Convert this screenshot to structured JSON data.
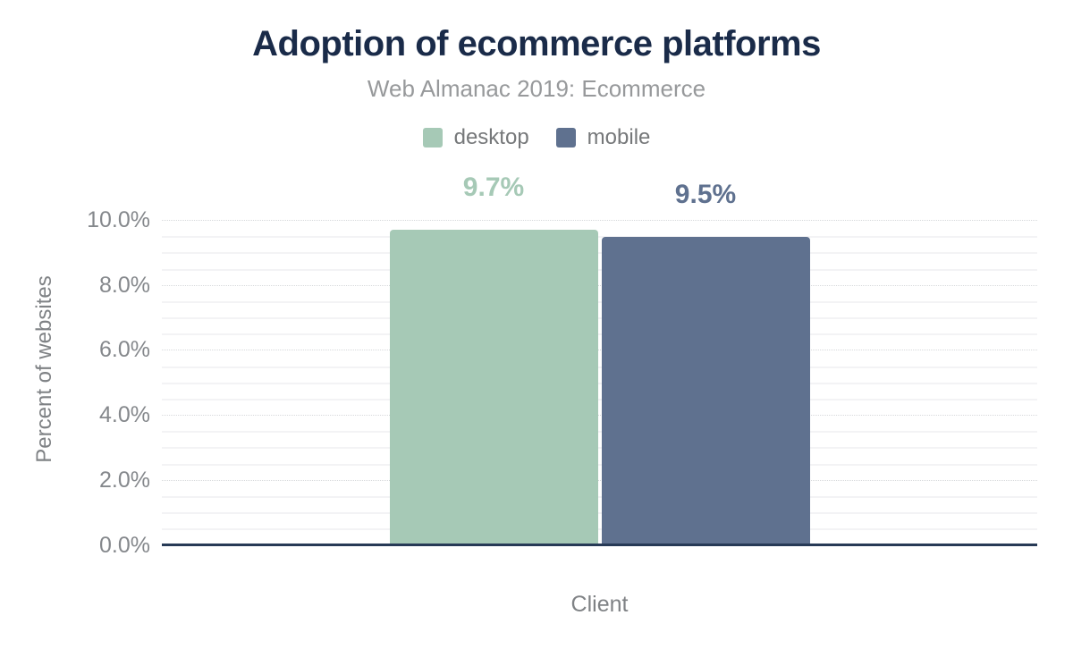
{
  "header": {
    "title": "Adoption of ecommerce platforms",
    "subtitle": "Web Almanac 2019: Ecommerce"
  },
  "colors": {
    "title_text": "#1a2b49",
    "subtitle_text": "#97999b",
    "legend_text": "#76787a",
    "tick_text": "#85888c",
    "axis_title_text": "#7f8285",
    "baseline": "#273a56",
    "major_gridline": "#d7d9db",
    "minor_gridline": "#f3f3f5",
    "desktop": "#a6c9b6",
    "mobile": "#5f718f"
  },
  "chart_data": {
    "type": "bar",
    "title": "Adoption of ecommerce platforms",
    "subtitle": "Web Almanac 2019: Ecommerce",
    "xlabel": "Client",
    "ylabel": "Percent of websites",
    "categories": [
      "Client"
    ],
    "series": [
      {
        "name": "desktop",
        "value": 9.7,
        "label": "9.7%",
        "color": "#a6c9b6"
      },
      {
        "name": "mobile",
        "value": 9.5,
        "label": "9.5%",
        "color": "#5f718f"
      }
    ],
    "ylim": [
      0,
      10
    ],
    "yticks": [
      {
        "value": 0,
        "label": "0.0%"
      },
      {
        "value": 2,
        "label": "2.0%"
      },
      {
        "value": 4,
        "label": "4.0%"
      },
      {
        "value": 6,
        "label": "6.0%"
      },
      {
        "value": 8,
        "label": "8.0%"
      },
      {
        "value": 10,
        "label": "10.0%"
      }
    ],
    "minor_tick_step": 0.5,
    "grid": true,
    "legend_position": "top"
  }
}
